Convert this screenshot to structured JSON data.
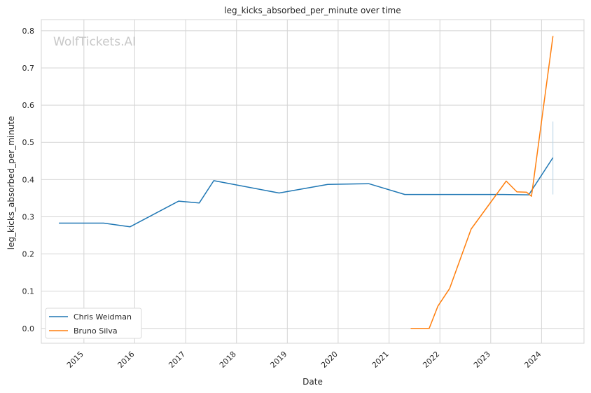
{
  "chart_data": {
    "type": "line",
    "title": "leg_kicks_absorbed_per_minute over time",
    "xlabel": "Date",
    "ylabel": "leg_kicks_absorbed_per_minute",
    "watermark": "WolfTickets.AI",
    "xlim": [
      "2014-03-01",
      "2024-11-01"
    ],
    "ylim": [
      -0.04,
      0.83
    ],
    "x_ticks": [
      "2015",
      "2016",
      "2017",
      "2018",
      "2019",
      "2020",
      "2021",
      "2022",
      "2023",
      "2024"
    ],
    "y_ticks": [
      "0.0",
      "0.1",
      "0.2",
      "0.3",
      "0.4",
      "0.5",
      "0.6",
      "0.7",
      "0.8"
    ],
    "grid": true,
    "legend_position": "lower-left",
    "series": [
      {
        "name": "Chris Weidman",
        "color": "#1f77b4",
        "x": [
          "2014-07-05",
          "2015-05-23",
          "2015-11-28",
          "2016-11-12",
          "2017-04-08",
          "2017-07-22",
          "2018-11-03",
          "2019-10-18",
          "2020-08-08",
          "2021-04-24",
          "2023-04-01",
          "2023-10-01",
          "2024-03-23"
        ],
        "y": [
          0.283,
          0.283,
          0.273,
          0.342,
          0.337,
          0.397,
          0.364,
          0.387,
          0.389,
          0.36,
          0.36,
          0.359,
          0.459
        ]
      },
      {
        "name": "Bruno Silva",
        "color": "#ff7f0e",
        "x": [
          "2021-06-05",
          "2021-10-16",
          "2021-12-18",
          "2022-03-12",
          "2022-08-13",
          "2023-04-22",
          "2023-07-08",
          "2023-09-16",
          "2023-10-21",
          "2024-03-23"
        ],
        "y": [
          0.0,
          0.0,
          0.06,
          0.107,
          0.267,
          0.396,
          0.367,
          0.366,
          0.355,
          0.786
        ]
      }
    ],
    "annotations": [
      {
        "type": "vertical-range",
        "x": "2024-03-23",
        "y_range": [
          0.36,
          0.556
        ],
        "color": "#b8d4e6"
      }
    ]
  }
}
